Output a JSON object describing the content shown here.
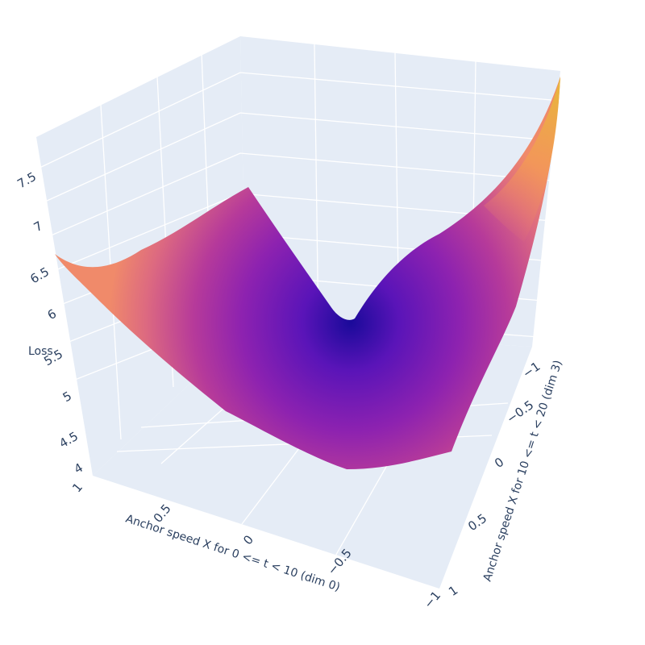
{
  "chart_data": {
    "type": "surface",
    "title": "",
    "x_axis": {
      "title": "Anchor speed X for 0 <= t < 10 (dim 0)",
      "ticks": [
        "1",
        "0.5",
        "0",
        "−0.5",
        "−1"
      ],
      "range": [
        1,
        -1
      ]
    },
    "y_axis": {
      "title": "Anchor speed X for 10 <= t < 20 (dim 3)",
      "ticks": [
        "−1",
        "−0.5",
        "0",
        "0.5",
        "1"
      ],
      "range": [
        -1,
        1
      ]
    },
    "z_axis": {
      "title": "Loss",
      "ticks": [
        "4",
        "4.5",
        "5",
        "5.5",
        "6",
        "6.5",
        "7",
        "7.5"
      ],
      "range": [
        3.9,
        7.8
      ]
    },
    "colorscale": [
      "#0d0887",
      "#46039f",
      "#7201a8",
      "#9c179e",
      "#bd3786",
      "#d8576b",
      "#ed7953",
      "#fb9f3a",
      "#fdca26",
      "#f0f921"
    ],
    "scene_background": "#e5ecf6",
    "grid_color": "#ffffff",
    "surface_samples": {
      "x": [
        1,
        0.5,
        0,
        -0.5,
        -1
      ],
      "y": [
        -1,
        -0.5,
        0,
        0.5,
        1
      ],
      "z": [
        [
          6.55,
          6.1,
          5.6,
          4.95,
          4.05
        ],
        [
          6.1,
          5.3,
          4.9,
          4.3,
          3.95
        ],
        [
          6.85,
          5.2,
          5.0,
          4.2,
          3.95
        ],
        [
          6.8,
          5.75,
          5.7,
          5.1,
          4.6
        ],
        [
          7.75,
          6.8,
          6.0,
          5.4,
          4.9
        ]
      ]
    },
    "colorbar": false
  }
}
